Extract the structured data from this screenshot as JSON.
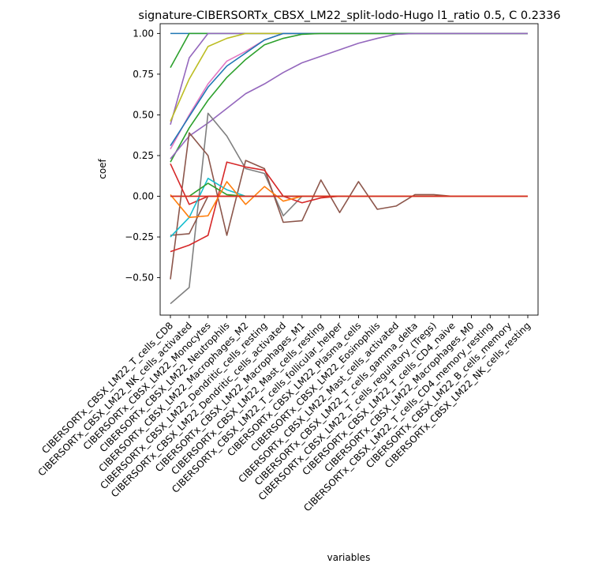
{
  "chart_data": {
    "type": "line",
    "title": "signature-CIBERSORTx_CBSX_LM22_split-lodo-Hugo l1_ratio 0.5, C 0.2336",
    "xlabel": "variables",
    "ylabel": "coef",
    "ylim": [
      -0.73,
      1.06
    ],
    "yticks": [
      "−0.50",
      "−0.25",
      "0.00",
      "0.25",
      "0.50",
      "0.75",
      "1.00"
    ],
    "ytick_values": [
      -0.5,
      -0.25,
      0,
      0.25,
      0.5,
      0.75,
      1.0
    ],
    "grid": false,
    "legend": "none",
    "categories": [
      "CIBERSORTx_CBSX_LM22_T_cells_CD8",
      "CIBERSORTx_CBSX_LM22_NK_cells_activated",
      "CIBERSORTx_CBSX_LM22_Monocytes",
      "CIBERSORTx_CBSX_LM22_Neutrophils",
      "CIBERSORTx_CBSX_LM22_Macrophages_M2",
      "CIBERSORTx_CBSX_LM22_Dendritic_cells_resting",
      "CIBERSORTx_CBSX_LM22_Dendritic_cells_activated",
      "CIBERSORTx_CBSX_LM22_Macrophages_M1",
      "CIBERSORTx_CBSX_LM22_Mast_cells_resting",
      "CIBERSORTx_CBSX_LM22_T_cells_follicular_helper",
      "CIBERSORTx_CBSX_LM22_Plasma_cells",
      "CIBERSORTx_CBSX_LM22_Eosinophils",
      "CIBERSORTx_CBSX_LM22_Mast_cells_activated",
      "CIBERSORTx_CBSX_LM22_T_cells_gamma_delta",
      "CIBERSORTx_CBSX_LM22_T_cells_regulatory_(Tregs)",
      "CIBERSORTx_CBSX_LM22_T_cells_CD4_naive",
      "CIBERSORTx_CBSX_LM22_Macrophages_M0",
      "CIBERSORTx_CBSX_LM22_T_cells_CD4_memory_resting",
      "CIBERSORTx_CBSX_LM22_B_cells_memory",
      "CIBERSORTx_CBSX_LM22_NK_cells_resting"
    ],
    "series": [
      {
        "color": "#1f77b4",
        "values": [
          1.0,
          1.0,
          1.0,
          1.0,
          1.0,
          1.0,
          1.0,
          1.0,
          1.0,
          1.0,
          1.0,
          1.0,
          1.0,
          1.0,
          1.0,
          1.0,
          1.0,
          1.0,
          1.0,
          1.0
        ]
      },
      {
        "color": "#2ca02c",
        "values": [
          0.79,
          1.0,
          1.0,
          1.0,
          1.0,
          1.0,
          1.0,
          1.0,
          1.0,
          1.0,
          1.0,
          1.0,
          1.0,
          1.0,
          1.0,
          1.0,
          1.0,
          1.0,
          1.0,
          1.0
        ]
      },
      {
        "color": "#9467bd",
        "values": [
          0.44,
          0.85,
          1.0,
          1.0,
          1.0,
          1.0,
          1.0,
          1.0,
          1.0,
          1.0,
          1.0,
          1.0,
          1.0,
          1.0,
          1.0,
          1.0,
          1.0,
          1.0,
          1.0,
          1.0
        ]
      },
      {
        "color": "#bcbd22",
        "values": [
          0.46,
          0.72,
          0.92,
          0.97,
          1.0,
          1.0,
          1.0,
          1.0,
          1.0,
          1.0,
          1.0,
          1.0,
          1.0,
          1.0,
          1.0,
          1.0,
          1.0,
          1.0,
          1.0,
          1.0
        ]
      },
      {
        "color": "#e377c2",
        "values": [
          0.29,
          0.5,
          0.69,
          0.83,
          0.89,
          0.96,
          1.0,
          1.0,
          1.0,
          1.0,
          1.0,
          1.0,
          1.0,
          1.0,
          1.0,
          1.0,
          1.0,
          1.0,
          1.0,
          1.0
        ]
      },
      {
        "color": "#1f77b4",
        "values": [
          0.31,
          0.49,
          0.67,
          0.8,
          0.88,
          0.96,
          1.0,
          1.0,
          1.0,
          1.0,
          1.0,
          1.0,
          1.0,
          1.0,
          1.0,
          1.0,
          1.0,
          1.0,
          1.0,
          1.0
        ]
      },
      {
        "color": "#2ca02c",
        "values": [
          0.21,
          0.42,
          0.59,
          0.73,
          0.84,
          0.93,
          0.97,
          0.995,
          1.0,
          1.0,
          1.0,
          1.0,
          1.0,
          1.0,
          1.0,
          1.0,
          1.0,
          1.0,
          1.0,
          1.0
        ]
      },
      {
        "color": "#9467bd",
        "values": [
          0.23,
          0.37,
          0.45,
          0.54,
          0.63,
          0.69,
          0.76,
          0.82,
          0.86,
          0.9,
          0.94,
          0.97,
          0.995,
          1.0,
          1.0,
          1.0,
          1.0,
          1.0,
          1.0,
          1.0
        ]
      },
      {
        "color": "#7f7f7f",
        "values": [
          -0.66,
          -0.56,
          0.51,
          0.37,
          0.17,
          0.14,
          -0.12,
          0.0,
          0.0,
          0.0,
          0.0,
          0.0,
          0.0,
          0.0,
          0.0,
          0.0,
          0.0,
          0.0,
          0.0,
          0.0
        ]
      },
      {
        "color": "#8c564b",
        "values": [
          -0.51,
          0.39,
          0.25,
          -0.24,
          0.22,
          0.17,
          -0.16,
          -0.15,
          0.1,
          -0.1,
          0.09,
          -0.08,
          -0.06,
          0.01,
          0.01,
          0.0,
          0.0,
          0.0,
          0.0,
          0.0
        ]
      },
      {
        "color": "#8c564b",
        "values": [
          -0.24,
          -0.23,
          0.0,
          0.0,
          0.0,
          0.0,
          0.0,
          0.0,
          0.0,
          0.0,
          0.0,
          0.0,
          0.0,
          0.0,
          0.0,
          0.0,
          0.0,
          0.0,
          0.0,
          0.0
        ]
      },
      {
        "color": "#d62728",
        "values": [
          -0.34,
          -0.3,
          -0.24,
          0.21,
          0.18,
          0.16,
          0.0,
          -0.04,
          -0.01,
          0.0,
          0.0,
          0.0,
          0.0,
          0.0,
          0.0,
          0.0,
          0.0,
          0.0,
          0.0,
          0.0
        ]
      },
      {
        "color": "#d62728",
        "values": [
          0.2,
          -0.05,
          0.0,
          0.0,
          0.0,
          0.0,
          0.0,
          0.0,
          0.0,
          0.0,
          0.0,
          0.0,
          0.0,
          0.0,
          0.0,
          0.0,
          0.0,
          0.0,
          0.0,
          0.0
        ]
      },
      {
        "color": "#17becf",
        "values": [
          -0.25,
          -0.13,
          0.11,
          0.04,
          0.0,
          0.0,
          0.0,
          0.0,
          0.0,
          0.0,
          0.0,
          0.0,
          0.0,
          0.0,
          0.0,
          0.0,
          0.0,
          0.0,
          0.0,
          0.0
        ]
      },
      {
        "color": "#2ca02c",
        "values": [
          0.0,
          0.0,
          0.08,
          0.01,
          0.0,
          0.0,
          0.0,
          0.0,
          0.0,
          0.0,
          0.0,
          0.0,
          0.0,
          0.0,
          0.0,
          0.0,
          0.0,
          0.0,
          0.0,
          0.0
        ]
      },
      {
        "color": "#ff7f0e",
        "values": [
          0.01,
          -0.13,
          -0.12,
          0.09,
          -0.05,
          0.06,
          -0.03,
          0.0,
          0.0,
          0.0,
          0.0,
          0.0,
          0.0,
          0.0,
          0.0,
          0.0,
          0.0,
          0.0,
          0.0,
          0.0
        ]
      },
      {
        "color": "#ff7f0e",
        "values": [
          0.0,
          0.0,
          0.0,
          0.0,
          0.0,
          0.0,
          0.0,
          0.0,
          0.0,
          0.0,
          0.0,
          0.0,
          0.0,
          0.0,
          0.0,
          0.0,
          0.0,
          0.0,
          0.0,
          0.0
        ]
      },
      {
        "color": "#d62728",
        "values": [
          0.0,
          0.0,
          0.0,
          0.0,
          0.0,
          0.0,
          0.0,
          0.0,
          0.0,
          0.0,
          0.0,
          0.0,
          0.0,
          0.0,
          0.0,
          0.0,
          0.0,
          0.0,
          0.0,
          0.0
        ]
      }
    ]
  }
}
